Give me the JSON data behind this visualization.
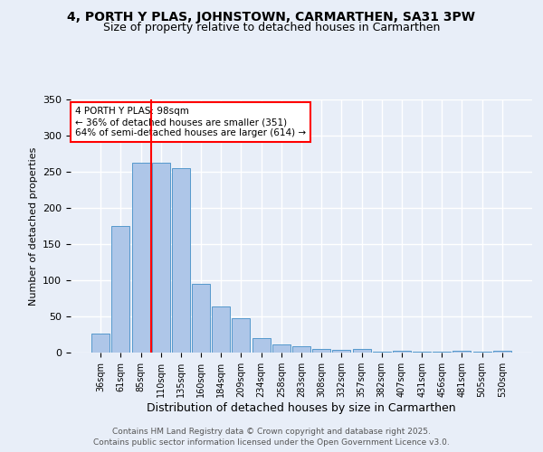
{
  "title": "4, PORTH Y PLAS, JOHNSTOWN, CARMARTHEN, SA31 3PW",
  "subtitle": "Size of property relative to detached houses in Carmarthen",
  "xlabel": "Distribution of detached houses by size in Carmarthen",
  "ylabel": "Number of detached properties",
  "categories": [
    "36sqm",
    "61sqm",
    "85sqm",
    "110sqm",
    "135sqm",
    "160sqm",
    "184sqm",
    "209sqm",
    "234sqm",
    "258sqm",
    "283sqm",
    "308sqm",
    "332sqm",
    "357sqm",
    "382sqm",
    "407sqm",
    "431sqm",
    "456sqm",
    "481sqm",
    "505sqm",
    "530sqm"
  ],
  "values": [
    26,
    175,
    262,
    262,
    255,
    95,
    64,
    47,
    20,
    11,
    9,
    5,
    4,
    5,
    1,
    3,
    1,
    1,
    2,
    1,
    3
  ],
  "bar_color": "#aec6e8",
  "bar_edge_color": "#5599cc",
  "vline_x": 2.5,
  "vline_color": "red",
  "annotation_text": "4 PORTH Y PLAS: 98sqm\n← 36% of detached houses are smaller (351)\n64% of semi-detached houses are larger (614) →",
  "annotation_box_color": "white",
  "annotation_box_edge_color": "red",
  "ylim": [
    0,
    350
  ],
  "yticks": [
    0,
    50,
    100,
    150,
    200,
    250,
    300,
    350
  ],
  "background_color": "#e8eef8",
  "footer_line1": "Contains HM Land Registry data © Crown copyright and database right 2025.",
  "footer_line2": "Contains public sector information licensed under the Open Government Licence v3.0.",
  "title_fontsize": 10,
  "subtitle_fontsize": 9,
  "footer_fontsize": 6.5,
  "ylabel_fontsize": 8,
  "xlabel_fontsize": 9,
  "tick_fontsize": 7,
  "annot_fontsize": 7.5
}
